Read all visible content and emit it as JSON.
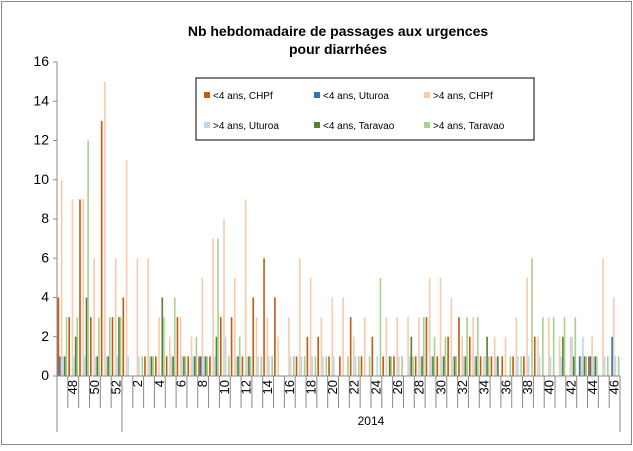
{
  "chart_data": {
    "type": "bar",
    "title": "Nb hebdomadaire de passages aux urgences",
    "subtitle": "pour diarrhées",
    "categories": [
      null,
      "48",
      null,
      "50",
      null,
      "52",
      null,
      "2",
      null,
      "4",
      null,
      "6",
      null,
      "8",
      null,
      "10",
      null,
      "12",
      null,
      "14",
      null,
      "16",
      null,
      "18",
      null,
      "20",
      null,
      "22",
      null,
      "24",
      null,
      "26",
      null,
      "28",
      null,
      "30",
      null,
      "32",
      null,
      "34",
      null,
      "36",
      null,
      "38",
      null,
      "40",
      null,
      "42",
      null,
      "44",
      null,
      "46"
    ],
    "group_label": "2014",
    "series": [
      {
        "name": "<4 ans, CHPf",
        "color": "#c55a11",
        "values": [
          4,
          3,
          9,
          3,
          13,
          3,
          4,
          0,
          1,
          1,
          1,
          3,
          1,
          1,
          1,
          3,
          3,
          1,
          4,
          6,
          4,
          0,
          1,
          2,
          2,
          1,
          1,
          3,
          1,
          2,
          1,
          1,
          0,
          1,
          3,
          1,
          2,
          3,
          2,
          1,
          1,
          1,
          1,
          1,
          2,
          0,
          0,
          0,
          0,
          1,
          0,
          0
        ]
      },
      {
        "name": "<4 ans, Uturoa",
        "color": "#2e75b6",
        "values": [
          1,
          0,
          0,
          0,
          0,
          0,
          0,
          0,
          0,
          0,
          0,
          0,
          0,
          1,
          0,
          0,
          0,
          0,
          0,
          0,
          0,
          0,
          0,
          0,
          0,
          0,
          0,
          0,
          0,
          0,
          0,
          0,
          0,
          0,
          0,
          0,
          0,
          0,
          0,
          0,
          0,
          0,
          0,
          0,
          0,
          0,
          0,
          0,
          1,
          1,
          0,
          2
        ]
      },
      {
        "name": ">4 ans, CHPf",
        "color": "#f8cbad",
        "values": [
          10,
          9,
          9,
          6,
          15,
          6,
          11,
          6,
          6,
          3,
          2,
          3,
          2,
          5,
          7,
          8,
          5,
          9,
          3,
          3,
          2,
          3,
          6,
          5,
          3,
          4,
          4,
          2,
          3,
          0,
          3,
          3,
          3,
          3,
          5,
          5,
          4,
          2,
          3,
          1,
          2,
          2,
          3,
          5,
          2,
          3,
          2,
          2,
          1,
          2,
          6,
          4
        ]
      },
      {
        "name": ">4 ans, Uturoa",
        "color": "#bdd7ee",
        "values": [
          1,
          1,
          1,
          1,
          1,
          1,
          1,
          1,
          1,
          0,
          1,
          1,
          1,
          1,
          1,
          2,
          1,
          1,
          1,
          1,
          0,
          1,
          1,
          1,
          1,
          1,
          0,
          1,
          0,
          1,
          0,
          1,
          1,
          1,
          1,
          1,
          1,
          1,
          1,
          1,
          1,
          0,
          1,
          1,
          1,
          1,
          1,
          2,
          2,
          1,
          1,
          1
        ]
      },
      {
        "name": "<4 ans, Taravao",
        "color": "#548235",
        "values": [
          1,
          2,
          4,
          1,
          1,
          3,
          0,
          0,
          1,
          4,
          1,
          1,
          1,
          1,
          2,
          0,
          1,
          1,
          0,
          0,
          0,
          0,
          0,
          0,
          0,
          0,
          0,
          0,
          0,
          0,
          1,
          0,
          2,
          1,
          1,
          1,
          1,
          1,
          1,
          2,
          1,
          0,
          0,
          0,
          0,
          0,
          2,
          1,
          1,
          1,
          0,
          0
        ]
      },
      {
        "name": ">4 ans, Taravao",
        "color": "#a9d18e",
        "values": [
          3,
          3,
          12,
          3,
          3,
          3,
          0,
          1,
          1,
          3,
          4,
          1,
          2,
          1,
          7,
          1,
          2,
          1,
          1,
          1,
          0,
          1,
          1,
          1,
          1,
          0,
          1,
          1,
          1,
          5,
          1,
          1,
          1,
          3,
          2,
          2,
          1,
          3,
          3,
          1,
          0,
          1,
          1,
          6,
          3,
          3,
          3,
          3,
          1,
          1,
          1,
          1
        ]
      }
    ],
    "ylim": [
      0,
      16
    ],
    "yticks": [
      0,
      2,
      4,
      6,
      8,
      10,
      12,
      14,
      16
    ],
    "grid": false
  }
}
